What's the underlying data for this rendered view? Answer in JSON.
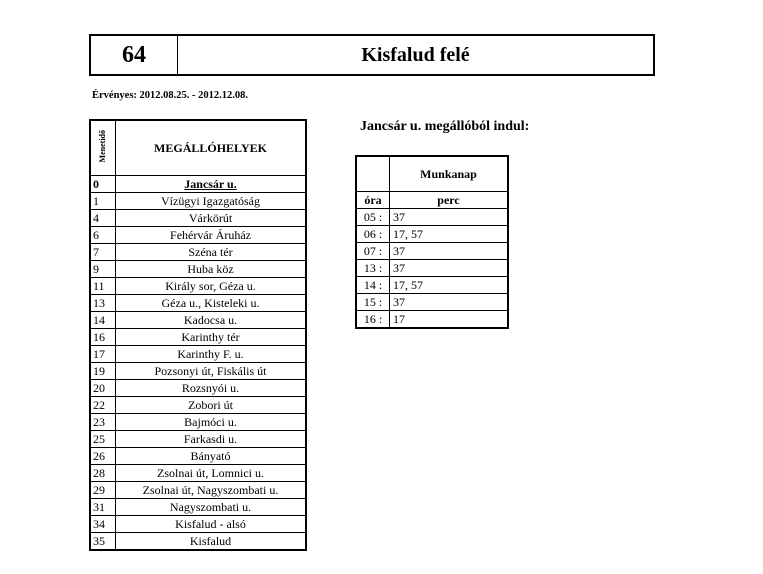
{
  "header": {
    "route": "64",
    "direction": "Kisfalud felé"
  },
  "validity": "Érvényes: 2012.08.25.  -  2012.12.08.",
  "stops": {
    "col_time": "Menetidő",
    "col_name": "MEGÁLLÓHELYEK",
    "rows": [
      [
        "0",
        "Jancsár u."
      ],
      [
        "1",
        "Vízügyi Igazgatóság"
      ],
      [
        "4",
        "Várkörút"
      ],
      [
        "6",
        "Fehérvár Áruház"
      ],
      [
        "7",
        "Széna tér"
      ],
      [
        "9",
        "Huba köz"
      ],
      [
        "11",
        "Király sor, Géza u."
      ],
      [
        "13",
        "Géza u., Kisteleki u."
      ],
      [
        "14",
        "Kadocsa u."
      ],
      [
        "16",
        "Karinthy tér"
      ],
      [
        "17",
        "Karinthy F. u."
      ],
      [
        "19",
        "Pozsonyi út, Fiskális út"
      ],
      [
        "20",
        "Rozsnyói u."
      ],
      [
        "22",
        "Zobori út"
      ],
      [
        "23",
        "Bajmóci u."
      ],
      [
        "25",
        "Farkasdi u."
      ],
      [
        "26",
        "Bányató"
      ],
      [
        "28",
        "Zsolnai út, Lomnici u."
      ],
      [
        "29",
        "Zsolnai út, Nagyszombati u."
      ],
      [
        "31",
        "Nagyszombati u."
      ],
      [
        "34",
        "Kisfalud - alsó"
      ],
      [
        "35",
        "Kisfalud"
      ]
    ]
  },
  "timetable": {
    "title": "Jancsár u. megállóból indul:",
    "day": "Munkanap",
    "col_hour": "óra",
    "col_min": "perc",
    "rows": [
      [
        "05 :",
        "37"
      ],
      [
        "06 :",
        "17, 57"
      ],
      [
        "07 :",
        "37"
      ],
      [
        "13 :",
        "37"
      ],
      [
        "14 :",
        "17, 57"
      ],
      [
        "15 :",
        "37"
      ],
      [
        "16 :",
        "17"
      ]
    ]
  }
}
